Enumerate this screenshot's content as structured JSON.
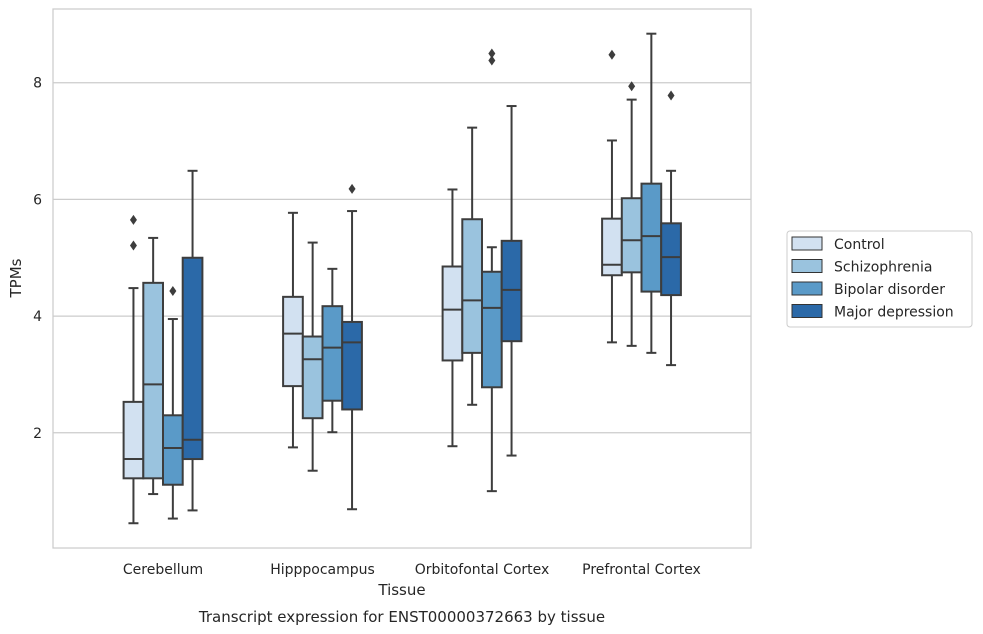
{
  "chart_data": {
    "type": "box",
    "title": "",
    "caption": "Transcript expression for ENST00000372663 by tissue",
    "xlabel": "Tissue",
    "ylabel": "TPMs",
    "ylim": [
      0,
      9.25
    ],
    "yticks": [
      2,
      4,
      6,
      8
    ],
    "grid": "y",
    "legend_position": "right",
    "categories": [
      "Cerebellum",
      "Hipppocampus",
      "Orbitofontal Cortex",
      "Prefrontal Cortex"
    ],
    "series": [
      {
        "name": "Control",
        "color": "#d2e1f1",
        "boxes": [
          {
            "whislo": 0.45,
            "q1": 1.22,
            "med": 1.55,
            "q3": 2.53,
            "whishi": 4.48,
            "fliers": [
              5.65,
              5.21
            ]
          },
          {
            "whislo": 1.75,
            "q1": 2.8,
            "med": 3.7,
            "q3": 4.33,
            "whishi": 5.77,
            "fliers": []
          },
          {
            "whislo": 1.77,
            "q1": 3.24,
            "med": 4.11,
            "q3": 4.85,
            "whishi": 6.17,
            "fliers": []
          },
          {
            "whislo": 3.55,
            "q1": 4.7,
            "med": 4.88,
            "q3": 5.67,
            "whishi": 7.01,
            "fliers": [
              8.48
            ]
          }
        ]
      },
      {
        "name": "Schizophrenia",
        "color": "#9ac3de",
        "boxes": [
          {
            "whislo": 0.95,
            "q1": 1.22,
            "med": 2.83,
            "q3": 4.57,
            "whishi": 5.34,
            "fliers": []
          },
          {
            "whislo": 1.35,
            "q1": 2.25,
            "med": 3.26,
            "q3": 3.65,
            "whishi": 5.26,
            "fliers": []
          },
          {
            "whislo": 2.48,
            "q1": 3.37,
            "med": 4.27,
            "q3": 5.66,
            "whishi": 7.23,
            "fliers": []
          },
          {
            "whislo": 3.49,
            "q1": 4.75,
            "med": 5.3,
            "q3": 6.02,
            "whishi": 7.71,
            "fliers": [
              7.94
            ]
          }
        ]
      },
      {
        "name": "Bipolar disorder",
        "color": "#5a9ac8",
        "boxes": [
          {
            "whislo": 0.53,
            "q1": 1.11,
            "med": 1.74,
            "q3": 2.3,
            "whishi": 3.95,
            "fliers": [
              4.43
            ]
          },
          {
            "whislo": 2.01,
            "q1": 2.55,
            "med": 3.46,
            "q3": 4.17,
            "whishi": 4.81,
            "fliers": []
          },
          {
            "whislo": 1.0,
            "q1": 2.78,
            "med": 4.14,
            "q3": 4.76,
            "whishi": 5.18,
            "fliers": [
              8.5,
              8.38
            ]
          },
          {
            "whislo": 3.37,
            "q1": 4.42,
            "med": 5.37,
            "q3": 6.27,
            "whishi": 8.84,
            "fliers": []
          }
        ]
      },
      {
        "name": "Major depression",
        "color": "#2b69a8",
        "boxes": [
          {
            "whislo": 0.67,
            "q1": 1.55,
            "med": 1.88,
            "q3": 5.0,
            "whishi": 6.49,
            "fliers": []
          },
          {
            "whislo": 0.69,
            "q1": 2.4,
            "med": 3.55,
            "q3": 3.9,
            "whishi": 5.8,
            "fliers": [
              6.18
            ]
          },
          {
            "whislo": 1.61,
            "q1": 3.57,
            "med": 4.45,
            "q3": 5.29,
            "whishi": 7.6,
            "fliers": []
          },
          {
            "whislo": 3.16,
            "q1": 4.36,
            "med": 5.01,
            "q3": 5.59,
            "whishi": 6.49,
            "fliers": [
              7.78
            ]
          }
        ]
      }
    ]
  }
}
